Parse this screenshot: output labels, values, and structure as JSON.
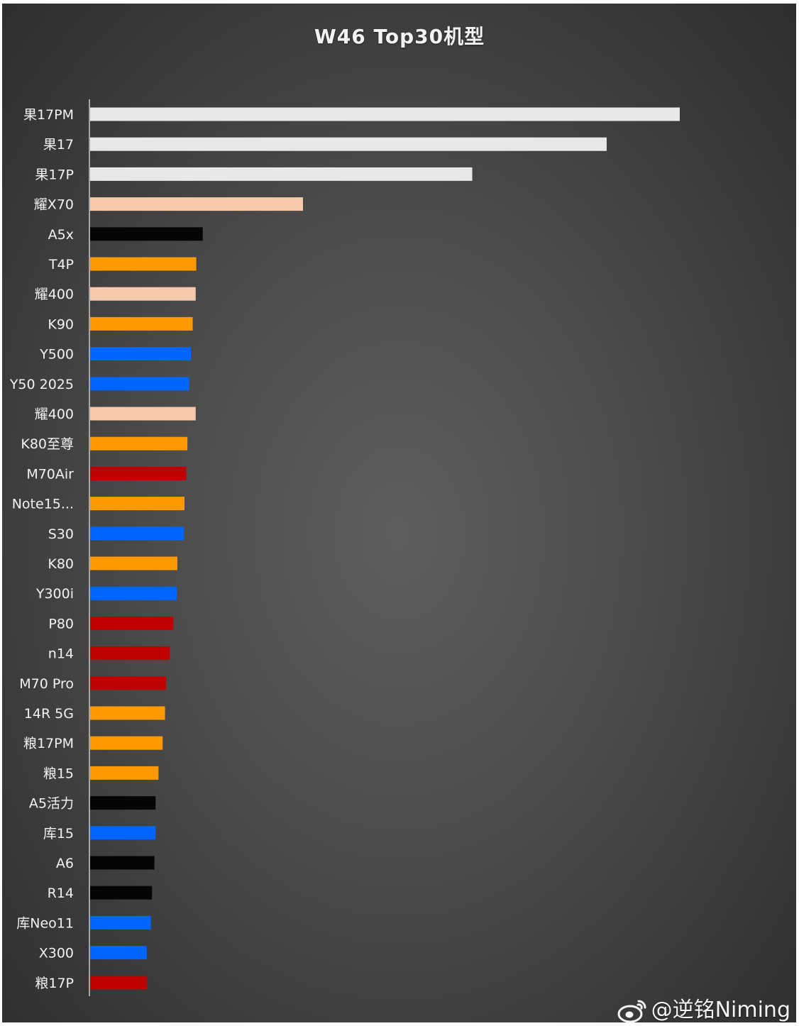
{
  "chart_data": {
    "type": "bar",
    "orientation": "horizontal",
    "title": "W46 Top30机型",
    "xlabel": "",
    "ylabel": "",
    "grid": false,
    "legend": "none",
    "xlim": [
      0,
      100
    ],
    "categories": [
      "果17PM",
      "果17",
      "果17P",
      "耀X70",
      "A5x",
      "T4P",
      "耀400",
      "K90",
      "Y500",
      "Y50 2025",
      "耀400",
      "K80至尊",
      "M70Air",
      "Note15...",
      "S30",
      "K80",
      "Y300i",
      "P80",
      "n14",
      "M70 Pro",
      "14R 5G",
      "粮17PM",
      "粮15",
      "A5活力",
      "库15",
      "A6",
      "R14",
      "库Neo11",
      "X300",
      "粮17P"
    ],
    "values": [
      100,
      87.6,
      64.8,
      36.1,
      19.1,
      18.0,
      17.9,
      17.4,
      17.1,
      16.8,
      17.9,
      16.5,
      16.3,
      16.0,
      15.9,
      14.8,
      14.7,
      14.1,
      13.5,
      12.9,
      12.7,
      12.3,
      11.6,
      11.1,
      11.1,
      10.9,
      10.5,
      10.3,
      9.6,
      9.6
    ],
    "colors": [
      "#e8e8e8",
      "#e8e8e8",
      "#e8e8e8",
      "#f6c9ab",
      "#050505",
      "#ff9900",
      "#f6c9ab",
      "#ff9900",
      "#0066ff",
      "#0066ff",
      "#f6c9ab",
      "#ff9900",
      "#c00000",
      "#ff9900",
      "#0066ff",
      "#ff9900",
      "#0066ff",
      "#c00000",
      "#c00000",
      "#c00000",
      "#ff9900",
      "#ff9900",
      "#ff9900",
      "#050505",
      "#0066ff",
      "#050505",
      "#050505",
      "#0066ff",
      "#0066ff",
      "#c00000"
    ]
  },
  "watermark": "@逆铭Niming",
  "watermark_icon": "weibo-icon"
}
